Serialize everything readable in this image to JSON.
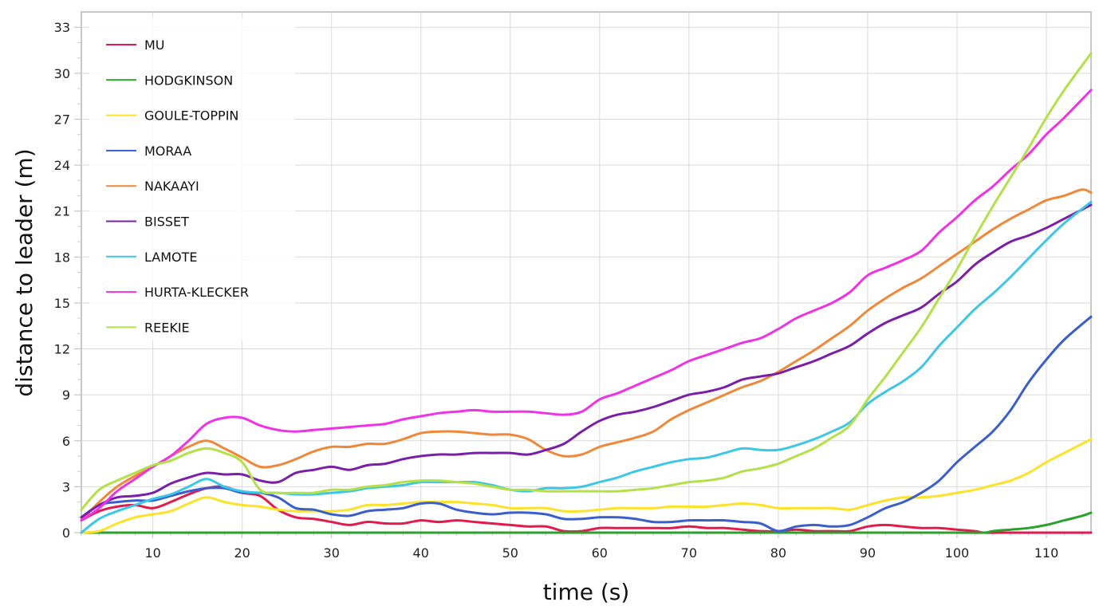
{
  "chart_data": {
    "type": "line",
    "title": "",
    "xlabel": "time (s)",
    "ylabel": "distance to leader (m)",
    "xlim": [
      2,
      115
    ],
    "ylim": [
      0,
      34
    ],
    "xticks": [
      10,
      20,
      30,
      40,
      50,
      60,
      70,
      80,
      90,
      100,
      110
    ],
    "yticks": [
      0,
      3,
      6,
      9,
      12,
      15,
      18,
      21,
      24,
      27,
      30,
      33
    ],
    "grid": true,
    "legend_position": "top-left",
    "series": [
      {
        "name": "MU",
        "color": "#e31a4e",
        "x": [
          2,
          4,
          6,
          8,
          10,
          12,
          14,
          16,
          18,
          20,
          22,
          24,
          26,
          28,
          30,
          32,
          34,
          36,
          38,
          40,
          42,
          44,
          46,
          48,
          50,
          52,
          54,
          56,
          58,
          60,
          62,
          64,
          66,
          68,
          70,
          72,
          74,
          76,
          78,
          80,
          82,
          84,
          86,
          88,
          90,
          92,
          94,
          96,
          98,
          100,
          102,
          103,
          105,
          110,
          115
        ],
        "y": [
          0.8,
          1.4,
          1.7,
          1.8,
          1.6,
          2.0,
          2.5,
          2.9,
          3.0,
          2.6,
          2.4,
          1.5,
          1.0,
          0.9,
          0.7,
          0.5,
          0.7,
          0.6,
          0.6,
          0.8,
          0.7,
          0.8,
          0.7,
          0.6,
          0.5,
          0.4,
          0.4,
          0.1,
          0.1,
          0.3,
          0.3,
          0.3,
          0.3,
          0.3,
          0.4,
          0.3,
          0.3,
          0.2,
          0.1,
          0.1,
          0.2,
          0.1,
          0.1,
          0.1,
          0.4,
          0.5,
          0.4,
          0.3,
          0.3,
          0.2,
          0.1,
          0.0,
          0.0,
          0.0,
          0.0
        ]
      },
      {
        "name": "HODGKINSON",
        "color": "#2ca02c",
        "x": [
          2,
          20,
          40,
          60,
          80,
          100,
          103,
          104,
          106,
          108,
          110,
          112,
          114,
          115
        ],
        "y": [
          0,
          0,
          0,
          0,
          0,
          0,
          0,
          0.1,
          0.2,
          0.3,
          0.5,
          0.8,
          1.1,
          1.3
        ]
      },
      {
        "name": "GOULE-TOPPIN",
        "color": "#fde22b",
        "x": [
          2,
          4,
          6,
          8,
          10,
          12,
          14,
          16,
          18,
          20,
          22,
          24,
          26,
          28,
          30,
          32,
          34,
          36,
          38,
          40,
          42,
          44,
          46,
          48,
          50,
          52,
          54,
          56,
          58,
          60,
          62,
          64,
          66,
          68,
          70,
          72,
          74,
          76,
          78,
          80,
          82,
          84,
          86,
          88,
          90,
          92,
          94,
          96,
          98,
          100,
          102,
          104,
          106,
          108,
          110,
          112,
          115
        ],
        "y": [
          0,
          0.1,
          0.6,
          1.0,
          1.2,
          1.4,
          1.9,
          2.3,
          2.0,
          1.8,
          1.7,
          1.5,
          1.4,
          1.4,
          1.4,
          1.5,
          1.8,
          1.8,
          1.9,
          2.0,
          2.0,
          2.0,
          1.9,
          1.8,
          1.6,
          1.6,
          1.6,
          1.4,
          1.4,
          1.5,
          1.6,
          1.6,
          1.6,
          1.7,
          1.7,
          1.7,
          1.8,
          1.9,
          1.8,
          1.6,
          1.6,
          1.6,
          1.6,
          1.5,
          1.8,
          2.1,
          2.3,
          2.3,
          2.4,
          2.6,
          2.8,
          3.1,
          3.4,
          3.9,
          4.6,
          5.2,
          6.1
        ]
      },
      {
        "name": "MORAA",
        "color": "#3a5fcd",
        "x": [
          2,
          4,
          6,
          8,
          10,
          12,
          14,
          16,
          18,
          20,
          22,
          24,
          26,
          28,
          30,
          32,
          34,
          36,
          38,
          40,
          42,
          44,
          46,
          48,
          50,
          52,
          54,
          56,
          58,
          60,
          62,
          64,
          66,
          68,
          70,
          72,
          74,
          76,
          78,
          80,
          82,
          84,
          86,
          88,
          90,
          92,
          94,
          96,
          98,
          100,
          102,
          104,
          106,
          108,
          110,
          112,
          115
        ],
        "y": [
          1.0,
          1.8,
          2.0,
          2.1,
          2.1,
          2.4,
          2.7,
          2.9,
          2.9,
          2.6,
          2.6,
          2.3,
          1.6,
          1.5,
          1.2,
          1.1,
          1.4,
          1.5,
          1.6,
          1.9,
          1.9,
          1.5,
          1.3,
          1.2,
          1.3,
          1.3,
          1.2,
          0.9,
          0.9,
          1.0,
          1.0,
          0.9,
          0.7,
          0.7,
          0.8,
          0.8,
          0.8,
          0.7,
          0.6,
          0.1,
          0.4,
          0.5,
          0.4,
          0.5,
          1.0,
          1.6,
          2.0,
          2.6,
          3.4,
          4.6,
          5.6,
          6.6,
          8.0,
          9.8,
          11.3,
          12.6,
          14.1
        ]
      },
      {
        "name": "NAKAAYI",
        "color": "#f0883a",
        "x": [
          2,
          4,
          6,
          8,
          10,
          12,
          14,
          16,
          18,
          20,
          22,
          24,
          26,
          28,
          30,
          32,
          34,
          36,
          38,
          40,
          42,
          44,
          46,
          48,
          50,
          52,
          54,
          56,
          58,
          60,
          62,
          64,
          66,
          68,
          70,
          72,
          74,
          76,
          78,
          80,
          82,
          84,
          86,
          88,
          90,
          92,
          94,
          96,
          98,
          100,
          102,
          104,
          106,
          108,
          110,
          112,
          114,
          115
        ],
        "y": [
          0.8,
          2.0,
          3.0,
          3.7,
          4.3,
          5.0,
          5.6,
          6.0,
          5.5,
          4.9,
          4.3,
          4.4,
          4.8,
          5.3,
          5.6,
          5.6,
          5.8,
          5.8,
          6.1,
          6.5,
          6.6,
          6.6,
          6.5,
          6.4,
          6.4,
          6.1,
          5.4,
          5.0,
          5.1,
          5.6,
          5.9,
          6.2,
          6.6,
          7.4,
          8.0,
          8.5,
          9.0,
          9.5,
          9.9,
          10.5,
          11.2,
          11.9,
          12.7,
          13.5,
          14.5,
          15.3,
          16.0,
          16.6,
          17.4,
          18.2,
          19.0,
          19.8,
          20.5,
          21.1,
          21.7,
          22.0,
          22.4,
          22.2
        ]
      },
      {
        "name": "BISSET",
        "color": "#7b1fa8",
        "x": [
          2,
          4,
          6,
          8,
          10,
          12,
          14,
          16,
          18,
          20,
          22,
          24,
          26,
          28,
          30,
          32,
          34,
          36,
          38,
          40,
          42,
          44,
          46,
          48,
          50,
          52,
          54,
          56,
          58,
          60,
          62,
          64,
          66,
          68,
          70,
          72,
          74,
          76,
          78,
          80,
          82,
          84,
          86,
          88,
          90,
          92,
          94,
          96,
          98,
          100,
          102,
          104,
          106,
          108,
          110,
          112,
          115
        ],
        "y": [
          1.0,
          1.8,
          2.3,
          2.4,
          2.6,
          3.2,
          3.6,
          3.9,
          3.8,
          3.8,
          3.4,
          3.3,
          3.9,
          4.1,
          4.3,
          4.1,
          4.4,
          4.5,
          4.8,
          5.0,
          5.1,
          5.1,
          5.2,
          5.2,
          5.2,
          5.1,
          5.4,
          5.8,
          6.6,
          7.3,
          7.7,
          7.9,
          8.2,
          8.6,
          9.0,
          9.2,
          9.5,
          10.0,
          10.2,
          10.4,
          10.8,
          11.2,
          11.7,
          12.2,
          13.0,
          13.7,
          14.2,
          14.7,
          15.6,
          16.4,
          17.5,
          18.3,
          19.0,
          19.4,
          19.9,
          20.5,
          21.4
        ]
      },
      {
        "name": "LAMOTE",
        "color": "#3dc7e6",
        "x": [
          2,
          4,
          6,
          8,
          10,
          12,
          14,
          16,
          18,
          20,
          22,
          24,
          26,
          28,
          30,
          32,
          34,
          36,
          38,
          40,
          42,
          44,
          46,
          48,
          50,
          52,
          54,
          56,
          58,
          60,
          62,
          64,
          66,
          68,
          70,
          72,
          74,
          76,
          78,
          80,
          82,
          84,
          86,
          88,
          90,
          92,
          94,
          96,
          98,
          100,
          102,
          104,
          106,
          108,
          110,
          112,
          115
        ],
        "y": [
          0,
          0.9,
          1.4,
          1.8,
          2.2,
          2.5,
          3.0,
          3.5,
          3.0,
          2.7,
          2.6,
          2.6,
          2.5,
          2.5,
          2.6,
          2.7,
          2.9,
          3.0,
          3.1,
          3.3,
          3.3,
          3.3,
          3.3,
          3.1,
          2.8,
          2.7,
          2.9,
          2.9,
          3.0,
          3.3,
          3.6,
          4.0,
          4.3,
          4.6,
          4.8,
          4.9,
          5.2,
          5.5,
          5.4,
          5.4,
          5.7,
          6.1,
          6.6,
          7.2,
          8.4,
          9.2,
          9.9,
          10.8,
          12.2,
          13.4,
          14.6,
          15.6,
          16.7,
          17.9,
          19.1,
          20.2,
          21.6
        ]
      },
      {
        "name": "HURTA-KLECKER",
        "color": "#f032e6",
        "x": [
          2,
          4,
          6,
          8,
          10,
          12,
          14,
          16,
          18,
          20,
          22,
          24,
          26,
          28,
          30,
          32,
          34,
          36,
          38,
          40,
          42,
          44,
          46,
          48,
          50,
          52,
          54,
          56,
          58,
          60,
          62,
          64,
          66,
          68,
          70,
          72,
          74,
          76,
          78,
          80,
          82,
          84,
          86,
          88,
          90,
          92,
          94,
          96,
          98,
          100,
          102,
          104,
          106,
          108,
          110,
          112,
          115
        ],
        "y": [
          0.8,
          1.6,
          2.7,
          3.5,
          4.3,
          5.0,
          6.0,
          7.1,
          7.5,
          7.5,
          7.0,
          6.7,
          6.6,
          6.7,
          6.8,
          6.9,
          7.0,
          7.1,
          7.4,
          7.6,
          7.8,
          7.9,
          8.0,
          7.9,
          7.9,
          7.9,
          7.8,
          7.7,
          7.9,
          8.7,
          9.1,
          9.6,
          10.1,
          10.6,
          11.2,
          11.6,
          12.0,
          12.4,
          12.7,
          13.3,
          14.0,
          14.5,
          15.0,
          15.7,
          16.8,
          17.3,
          17.8,
          18.4,
          19.6,
          20.6,
          21.7,
          22.6,
          23.7,
          24.7,
          26.0,
          27.1,
          28.9
        ]
      },
      {
        "name": "REEKIE",
        "color": "#b4e04a",
        "x": [
          2,
          4,
          6,
          8,
          10,
          12,
          14,
          16,
          18,
          20,
          22,
          24,
          26,
          28,
          30,
          32,
          34,
          36,
          38,
          40,
          42,
          44,
          46,
          48,
          50,
          52,
          54,
          56,
          58,
          60,
          62,
          64,
          66,
          68,
          70,
          72,
          74,
          76,
          78,
          80,
          82,
          84,
          86,
          88,
          90,
          92,
          94,
          96,
          98,
          100,
          102,
          104,
          106,
          108,
          110,
          112,
          115
        ],
        "y": [
          1.5,
          2.8,
          3.4,
          3.9,
          4.4,
          4.7,
          5.2,
          5.5,
          5.2,
          4.6,
          2.8,
          2.6,
          2.6,
          2.6,
          2.8,
          2.8,
          3.0,
          3.1,
          3.3,
          3.4,
          3.4,
          3.3,
          3.2,
          3.0,
          2.8,
          2.8,
          2.7,
          2.7,
          2.7,
          2.7,
          2.7,
          2.8,
          2.9,
          3.1,
          3.3,
          3.4,
          3.6,
          4.0,
          4.2,
          4.5,
          5.0,
          5.5,
          6.2,
          7.0,
          8.7,
          10.2,
          11.8,
          13.4,
          15.3,
          17.2,
          19.3,
          21.3,
          23.2,
          25.1,
          27.1,
          28.9,
          31.3
        ]
      }
    ]
  }
}
